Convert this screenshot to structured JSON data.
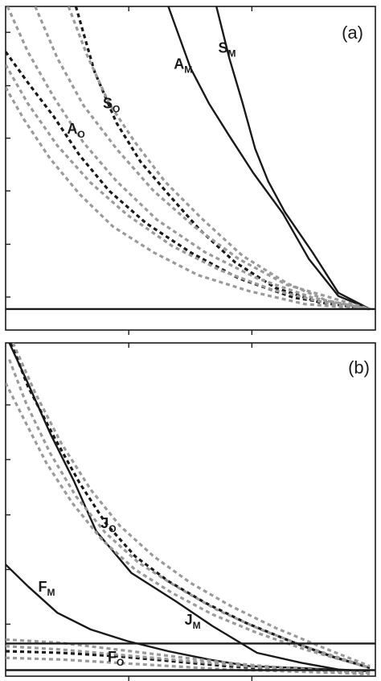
{
  "colors": {
    "black": "#1a1a1a",
    "gray": "#9a9a9a",
    "background": "#ffffff"
  },
  "chart_data": [
    {
      "type": "line",
      "panel_label": "(a)",
      "xlim": [
        0,
        100
      ],
      "ylim": [
        0,
        100
      ],
      "x_ticks": [
        0,
        33.3,
        66.6,
        100
      ],
      "y_ticks": [
        10.2,
        26.5,
        43.0,
        59.3,
        75.5,
        92.0
      ],
      "labels": [
        {
          "text": "A",
          "sub": "M",
          "x": 45.5,
          "y": 80.7
        },
        {
          "text": "S",
          "sub": "M",
          "x": 57.5,
          "y": 85.7
        },
        {
          "text": "S",
          "sub": "O",
          "x": 26.3,
          "y": 68.5
        },
        {
          "text": "A",
          "sub": "O",
          "x": 16.6,
          "y": 60.7
        }
      ],
      "series": [
        {
          "style": "solid",
          "color": "#1a1a1a",
          "x": [
            44.0,
            50.0,
            55.0,
            60.5,
            67.0,
            75.0,
            82.0,
            90.0,
            98.5
          ],
          "y": [
            100,
            81.0,
            70.0,
            60.0,
            48.5,
            36.0,
            22.0,
            10.5,
            6.5
          ]
        },
        {
          "style": "solid",
          "color": "#1a1a1a",
          "x": [
            57.0,
            60.5,
            64.0,
            67.5,
            71.0,
            75.5,
            83.0,
            90.0,
            98.5
          ],
          "y": [
            100,
            84.0,
            70.5,
            56.0,
            46.0,
            36.5,
            24.0,
            11.5,
            6.5
          ]
        },
        {
          "style": "dashed",
          "color": "#1a1a1a",
          "x": [
            19.0,
            24.0,
            30.0,
            36.5,
            44.0,
            52.5,
            62.0,
            73.0,
            85.0,
            98.5
          ],
          "y": [
            100,
            80.0,
            64.0,
            52.0,
            42.0,
            31.0,
            21.0,
            13.0,
            8.5,
            6.5
          ]
        },
        {
          "style": "dashed",
          "color": "#1a1a1a",
          "x": [
            0.0,
            6.0,
            13.0,
            20.0,
            28.0,
            38.0,
            50.0,
            63.0,
            78.0,
            98.5
          ],
          "y": [
            86.0,
            76.5,
            66.0,
            54.0,
            43.0,
            33.0,
            24.0,
            16.0,
            10.0,
            6.5
          ]
        },
        {
          "style": "dashed",
          "color": "#9a9a9a",
          "x": [
            17.0,
            22.0,
            28.0,
            35.0,
            43.0,
            53.0,
            64.0,
            76.0,
            87.0,
            98.5
          ],
          "y": [
            100,
            85.0,
            70.0,
            58.0,
            46.0,
            34.5,
            23.0,
            14.5,
            9.0,
            6.5
          ]
        },
        {
          "style": "dashed",
          "color": "#9a9a9a",
          "x": [
            8.0,
            14.0,
            21.0,
            30.0,
            40.0,
            51.0,
            63.0,
            76.0,
            98.5
          ],
          "y": [
            100,
            84.0,
            69.5,
            56.0,
            43.0,
            32.0,
            22.0,
            14.0,
            6.5
          ]
        },
        {
          "style": "dashed",
          "color": "#9a9a9a",
          "x": [
            0.5,
            6.0,
            13.0,
            21.0,
            30.0,
            41.0,
            54.0,
            68.0,
            83.0,
            98.5
          ],
          "y": [
            100,
            86.0,
            72.0,
            58.0,
            46.0,
            34.0,
            24.0,
            16.0,
            10.0,
            6.5
          ]
        },
        {
          "style": "dashed",
          "color": "#9a9a9a",
          "x": [
            0.0,
            6.0,
            14.0,
            23.0,
            33.0,
            45.0,
            58.0,
            72.0,
            86.0,
            98.5
          ],
          "y": [
            82.0,
            70.0,
            57.0,
            45.5,
            35.5,
            26.0,
            18.5,
            12.5,
            8.5,
            6.5
          ]
        },
        {
          "style": "dashed",
          "color": "#9a9a9a",
          "x": [
            0.0,
            5.0,
            12.0,
            20.0,
            29.0,
            40.0,
            52.0,
            66.0,
            81.0,
            98.5
          ],
          "y": [
            75.0,
            65.0,
            53.0,
            42.0,
            32.0,
            24.0,
            17.0,
            12.0,
            8.0,
            6.5
          ]
        },
        {
          "style": "solid",
          "color": "#1a1a1a",
          "x": [
            0,
            100
          ],
          "y": [
            6.5,
            6.5
          ]
        }
      ]
    },
    {
      "type": "line",
      "panel_label": "(b)",
      "xlim": [
        0,
        100
      ],
      "ylim": [
        0,
        100
      ],
      "x_ticks": [
        0,
        33.3,
        66.6,
        100
      ],
      "y_ticks": [
        15.6,
        32.0,
        48.4,
        65.0,
        81.4
      ],
      "labels": [
        {
          "text": "J",
          "sub": "O",
          "x": 25.7,
          "y": 44.5
        },
        {
          "text": "F",
          "sub": "M",
          "x": 8.8,
          "y": 25.4
        },
        {
          "text": "J",
          "sub": "M",
          "x": 48.4,
          "y": 15.5
        },
        {
          "text": "F",
          "sub": "O",
          "x": 27.6,
          "y": 4.3
        }
      ],
      "series": [
        {
          "style": "solid",
          "color": "#1a1a1a",
          "x": [
            1.0,
            6.0,
            12.0,
            18.5,
            24.5,
            34.0,
            46.0,
            56.0,
            68.0,
            80.0,
            90.0,
            98.5
          ],
          "y": [
            100,
            88.0,
            73.0,
            58.5,
            43.5,
            31.0,
            22.5,
            15.0,
            7.0,
            4.0,
            2.0,
            1.5
          ]
        },
        {
          "style": "solid",
          "color": "#1a1a1a",
          "x": [
            0.0,
            6.0,
            14.0,
            23.0,
            33.0,
            44.0,
            55.0,
            66.0,
            78.0,
            88.0,
            98.5
          ],
          "y": [
            33.5,
            27.0,
            19.0,
            14.0,
            10.5,
            7.5,
            5.0,
            3.0,
            2.5,
            2.0,
            1.5
          ]
        },
        {
          "style": "dashed",
          "color": "#1a1a1a",
          "x": [
            1.5,
            6.0,
            13.0,
            20.0,
            27.0,
            35.0,
            44.0,
            54.0,
            65.0,
            77.0,
            88.0,
            98.5
          ],
          "y": [
            100,
            87.0,
            72.0,
            58.0,
            46.0,
            36.0,
            28.5,
            22.0,
            16.0,
            10.5,
            6.0,
            2.5
          ]
        },
        {
          "style": "dashed",
          "color": "#9a9a9a",
          "x": [
            2.0,
            8.0,
            15.0,
            23.0,
            31.0,
            40.0,
            50.0,
            61.0,
            73.0,
            86.0,
            98.5
          ],
          "y": [
            100,
            85.0,
            70.0,
            56.0,
            45.0,
            36.0,
            28.0,
            21.0,
            14.5,
            8.5,
            3.0
          ]
        },
        {
          "style": "dashed",
          "color": "#9a9a9a",
          "x": [
            1.0,
            5.5,
            12.0,
            19.0,
            27.0,
            36.0,
            46.0,
            57.0,
            69.0,
            82.0,
            98.5
          ],
          "y": [
            95.0,
            82.0,
            67.0,
            54.0,
            43.0,
            34.0,
            27.0,
            20.0,
            14.0,
            8.5,
            2.5
          ]
        },
        {
          "style": "dashed",
          "color": "#9a9a9a",
          "x": [
            0.0,
            5.0,
            11.0,
            18.0,
            26.0,
            35.0,
            45.0,
            56.0,
            68.0,
            81.0,
            98.5
          ],
          "y": [
            88.0,
            77.0,
            64.0,
            52.0,
            41.0,
            32.0,
            25.0,
            18.5,
            13.0,
            8.0,
            2.5
          ]
        },
        {
          "style": "dashed",
          "color": "#1a1a1a",
          "x": [
            0.0,
            15.0,
            30.0,
            45.0,
            60.0,
            75.0,
            90.0,
            98.5
          ],
          "y": [
            7.5,
            7.0,
            6.0,
            4.5,
            3.0,
            2.0,
            1.5,
            1.0
          ]
        },
        {
          "style": "dashed",
          "color": "#9a9a9a",
          "x": [
            0.0,
            15.0,
            30.0,
            45.0,
            60.0,
            75.0,
            90.0,
            98.5
          ],
          "y": [
            11.0,
            10.0,
            8.0,
            6.0,
            4.0,
            2.5,
            1.5,
            1.0
          ]
        },
        {
          "style": "dashed",
          "color": "#9a9a9a",
          "x": [
            0.0,
            15.0,
            30.0,
            45.0,
            60.0,
            75.0,
            90.0,
            98.5
          ],
          "y": [
            9.0,
            8.0,
            6.5,
            5.0,
            3.5,
            2.0,
            1.5,
            1.0
          ]
        },
        {
          "style": "dashed",
          "color": "#9a9a9a",
          "x": [
            0.0,
            15.0,
            30.0,
            45.0,
            60.0,
            75.0,
            90.0,
            98.5
          ],
          "y": [
            5.5,
            5.0,
            4.0,
            3.0,
            2.0,
            1.5,
            1.0,
            0.5
          ]
        },
        {
          "style": "solid",
          "color": "#1a1a1a",
          "x": [
            0,
            100
          ],
          "y": [
            9.8,
            9.8
          ]
        },
        {
          "style": "solid",
          "color": "#1a1a1a",
          "x": [
            0,
            100
          ],
          "y": [
            1.8,
            1.8
          ]
        }
      ]
    }
  ]
}
